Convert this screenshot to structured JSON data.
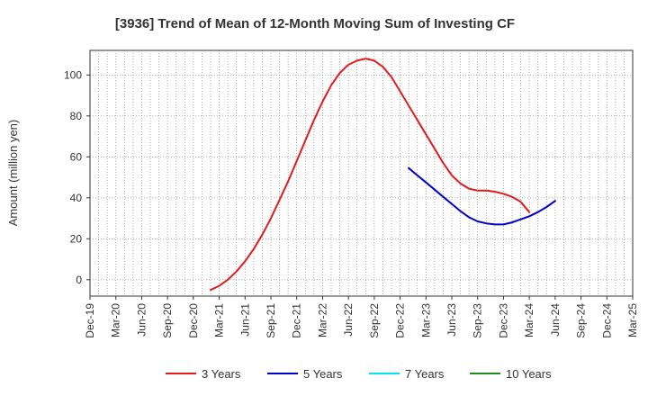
{
  "chart_data": {
    "type": "line",
    "title": "[3936]  Trend of Mean of 12-Month Moving Sum of Investing CF",
    "xlabel": "",
    "ylabel": "Amount (million yen)",
    "ylim": [
      -8,
      112
    ],
    "yticks": [
      0,
      20,
      40,
      60,
      80,
      100
    ],
    "xlim": [
      0,
      63
    ],
    "x_tick_labels": [
      "Dec-19",
      "Mar-20",
      "Jun-20",
      "Sep-20",
      "Dec-20",
      "Mar-21",
      "Jun-21",
      "Sep-21",
      "Dec-21",
      "Mar-22",
      "Jun-22",
      "Sep-22",
      "Dec-22",
      "Mar-23",
      "Jun-23",
      "Sep-23",
      "Dec-23",
      "Mar-24",
      "Jun-24",
      "Sep-24",
      "Dec-24",
      "Mar-25"
    ],
    "grid": true,
    "legend_position": "bottom",
    "series": [
      {
        "name": "3 Years",
        "color": "#e41a1c",
        "x": [
          14,
          15,
          16,
          17,
          18,
          19,
          20,
          21,
          22,
          23,
          24,
          25,
          26,
          27,
          28,
          29,
          30,
          31,
          32,
          33,
          34,
          35,
          36,
          37,
          38,
          39,
          40,
          41,
          42,
          43,
          44,
          45,
          46,
          47,
          48,
          49,
          50,
          51,
          52,
          53,
          54,
          55,
          56,
          57,
          58
        ],
        "y": [
          -5,
          -3,
          0,
          4,
          9,
          15,
          22,
          30,
          39,
          48,
          58,
          68,
          78,
          87,
          95,
          101,
          105,
          107,
          108,
          107,
          104,
          99,
          92,
          85,
          78,
          71,
          64,
          57,
          51,
          47,
          44.5,
          43.5,
          43.5,
          43,
          42,
          40.5,
          38,
          33,
          null,
          null,
          null,
          null,
          null,
          null,
          null
        ]
      },
      {
        "name": "5 Years",
        "color": "#0000cd",
        "x": [
          37,
          38,
          39,
          40,
          41,
          42,
          43,
          44,
          45,
          46,
          47,
          48,
          49,
          50,
          51,
          52,
          53,
          54,
          55,
          56,
          57,
          58
        ],
        "y": [
          54.5,
          51,
          47.5,
          44,
          40.5,
          37,
          33.5,
          30.5,
          28.5,
          27.5,
          27,
          27,
          28,
          29.5,
          31,
          33,
          35.5,
          38.5,
          null,
          null,
          null,
          null
        ]
      },
      {
        "name": "7 Years",
        "color": "#00e5ee",
        "x": [],
        "y": []
      },
      {
        "name": "10 Years",
        "color": "#228b22",
        "x": [],
        "y": []
      }
    ]
  }
}
